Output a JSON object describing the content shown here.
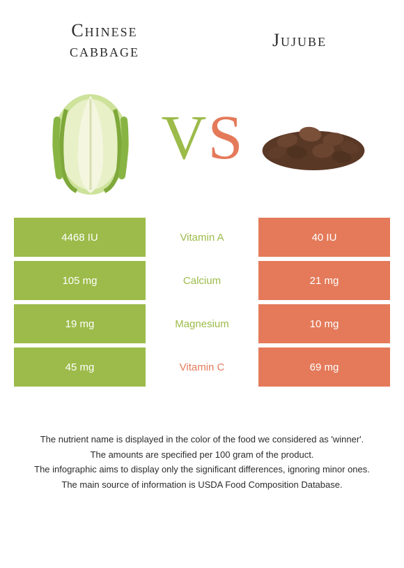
{
  "colors": {
    "left_food": "#9cbb4a",
    "right_food": "#e47a5a",
    "text_dark": "#2b2b2b"
  },
  "header": {
    "left_title_line1": "Chinese",
    "left_title_line2": "cabbage",
    "right_title": "Jujube"
  },
  "vs": {
    "v": "V",
    "s": "S"
  },
  "nutrients": [
    {
      "name": "Vitamin A",
      "left": "4468 IU",
      "right": "40 IU",
      "winner": "left"
    },
    {
      "name": "Calcium",
      "left": "105 mg",
      "right": "21 mg",
      "winner": "left"
    },
    {
      "name": "Magnesium",
      "left": "19 mg",
      "right": "10 mg",
      "winner": "left"
    },
    {
      "name": "Vitamin C",
      "left": "45 mg",
      "right": "69 mg",
      "winner": "right"
    }
  ],
  "footnotes": [
    "The nutrient name is displayed in the color of the food we considered as 'winner'.",
    "The amounts are specified per 100 gram of the product.",
    "The infographic aims to display only the significant differences, ignoring minor ones.",
    "The main source of information is USDA Food Composition Database."
  ]
}
